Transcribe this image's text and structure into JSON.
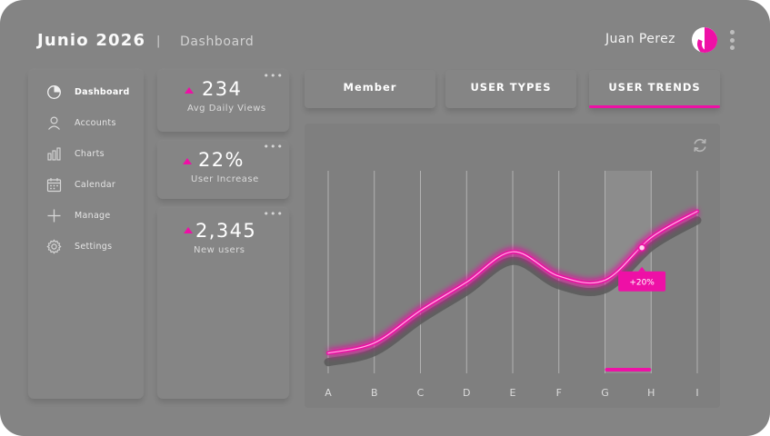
{
  "header": {
    "title": "Junio 2026",
    "separator": "|",
    "subtitle": "Dashboard",
    "user_name": "Juan Perez"
  },
  "colors": {
    "accent": "#ee10a6",
    "background": "#848484",
    "card": "#858585",
    "text": "#ffffff"
  },
  "sidebar": {
    "items": [
      {
        "label": "Dashboard",
        "icon": "pie-chart-icon",
        "active": true
      },
      {
        "label": "Accounts",
        "icon": "user-icon",
        "active": false
      },
      {
        "label": "Charts",
        "icon": "bar-chart-icon",
        "active": false
      },
      {
        "label": "Calendar",
        "icon": "calendar-icon",
        "active": false
      },
      {
        "label": "Manage",
        "icon": "plus-icon",
        "active": false
      },
      {
        "label": "Settings",
        "icon": "gear-icon",
        "active": false
      }
    ]
  },
  "stats": [
    {
      "value": "234",
      "label": "Avg Daily Views",
      "trend": "up"
    },
    {
      "value": "22%",
      "label": "User Increase",
      "trend": "up"
    },
    {
      "value": "2,345",
      "label": "New users",
      "trend": "up"
    }
  ],
  "tabs": [
    {
      "label": "Member",
      "active": false
    },
    {
      "label": "USER TYPES",
      "active": false
    },
    {
      "label": "USER TRENDS",
      "active": true
    }
  ],
  "chart_data": {
    "type": "line",
    "categories": [
      "A",
      "B",
      "C",
      "D",
      "E",
      "F",
      "G",
      "H",
      "I"
    ],
    "series": [
      {
        "values": [
          10,
          15,
          31,
          45,
          60,
          48,
          46,
          67,
          80
        ]
      }
    ],
    "ylim": [
      0,
      100
    ],
    "highlight_category": "H",
    "annotation": "+20%",
    "grid": "vertical lines"
  }
}
